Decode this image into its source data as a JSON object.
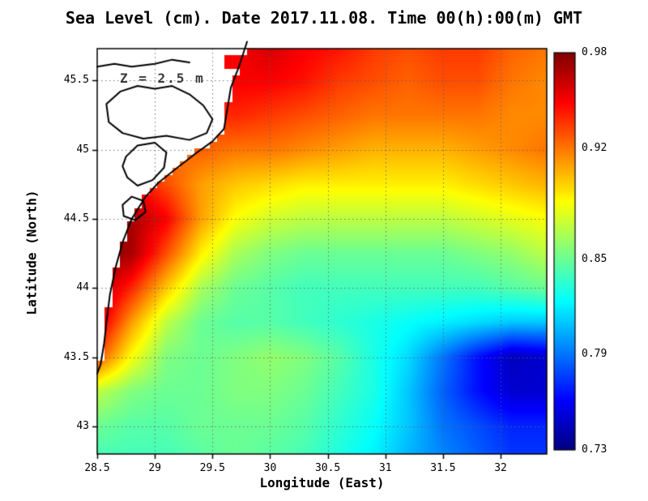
{
  "title": "Sea Level (cm). Date 2017.11.08. Time 00(h):00(m) GMT",
  "annotation": "Z = 2.5 m",
  "axes": {
    "xlabel": "Longitude (East)",
    "ylabel": "Latitude (North)",
    "x_range": [
      28.5,
      32.4
    ],
    "y_range": [
      42.8,
      45.73
    ],
    "x_ticks": [
      {
        "value": 28.5,
        "label": "28.5"
      },
      {
        "value": 29.0,
        "label": "29"
      },
      {
        "value": 29.5,
        "label": "29.5"
      },
      {
        "value": 30.0,
        "label": "30"
      },
      {
        "value": 30.5,
        "label": "30.5"
      },
      {
        "value": 31.0,
        "label": "31"
      },
      {
        "value": 31.5,
        "label": "31.5"
      },
      {
        "value": 32.0,
        "label": "32"
      }
    ],
    "y_ticks": [
      {
        "value": 43.0,
        "label": "43"
      },
      {
        "value": 43.5,
        "label": "43.5"
      },
      {
        "value": 44.0,
        "label": "44"
      },
      {
        "value": 44.5,
        "label": "44.5"
      },
      {
        "value": 45.0,
        "label": "45"
      },
      {
        "value": 45.5,
        "label": "45.5"
      }
    ],
    "grid": "dotted"
  },
  "colorbar": {
    "min": 0.73,
    "max": 0.98,
    "colormap": "jet",
    "ticks": [
      {
        "value": 0.98,
        "label": "0.98"
      },
      {
        "value": 0.92,
        "label": "0.92"
      },
      {
        "value": 0.85,
        "label": "0.85"
      },
      {
        "value": 0.79,
        "label": "0.79"
      },
      {
        "value": 0.73,
        "label": "0.73"
      }
    ]
  },
  "chart_data": {
    "type": "heatmap",
    "title": "Sea Level (cm). Date 2017.11.08. Time 00(h):00(m) GMT",
    "xlabel": "Longitude (East)",
    "ylabel": "Latitude (North)",
    "value_units": "m (sea level field shown 0.73-0.98)",
    "colormap": "jet",
    "value_range": [
      0.73,
      0.98
    ],
    "lon": [
      28.5,
      28.8,
      29.1,
      29.4,
      29.7,
      30.0,
      30.3,
      30.6,
      30.9,
      31.2,
      31.5,
      31.8,
      32.1,
      32.4
    ],
    "lat": [
      45.75,
      45.5,
      45.25,
      45.0,
      44.75,
      44.5,
      44.25,
      44.0,
      43.75,
      43.5,
      43.25,
      43.0,
      42.75
    ],
    "values": [
      [
        0.95,
        0.95,
        0.95,
        0.95,
        0.95,
        0.96,
        0.95,
        0.945,
        0.935,
        0.93,
        0.935,
        0.935,
        0.925,
        0.92
      ],
      [
        0.94,
        0.94,
        0.94,
        0.945,
        0.95,
        0.95,
        0.945,
        0.935,
        0.93,
        0.925,
        0.93,
        0.93,
        0.92,
        0.915
      ],
      [
        0.93,
        0.93,
        0.93,
        0.935,
        0.94,
        0.935,
        0.93,
        0.925,
        0.92,
        0.92,
        0.92,
        0.92,
        0.915,
        0.915
      ],
      [
        0.92,
        0.92,
        0.92,
        0.925,
        0.92,
        0.92,
        0.915,
        0.91,
        0.905,
        0.905,
        0.905,
        0.91,
        0.915,
        0.92
      ],
      [
        0.96,
        0.95,
        0.93,
        0.91,
        0.9,
        0.895,
        0.89,
        0.89,
        0.89,
        0.89,
        0.89,
        0.895,
        0.9,
        0.905
      ],
      [
        0.98,
        0.97,
        0.95,
        0.91,
        0.885,
        0.875,
        0.87,
        0.87,
        0.87,
        0.87,
        0.87,
        0.875,
        0.88,
        0.885
      ],
      [
        0.98,
        0.97,
        0.93,
        0.89,
        0.865,
        0.855,
        0.85,
        0.85,
        0.85,
        0.85,
        0.85,
        0.855,
        0.86,
        0.87
      ],
      [
        0.97,
        0.94,
        0.9,
        0.865,
        0.85,
        0.845,
        0.84,
        0.84,
        0.84,
        0.84,
        0.84,
        0.84,
        0.845,
        0.85
      ],
      [
        0.96,
        0.91,
        0.87,
        0.85,
        0.845,
        0.845,
        0.84,
        0.835,
        0.83,
        0.825,
        0.82,
        0.815,
        0.81,
        0.81
      ],
      [
        0.93,
        0.885,
        0.855,
        0.85,
        0.855,
        0.86,
        0.855,
        0.845,
        0.83,
        0.815,
        0.79,
        0.765,
        0.745,
        0.75
      ],
      [
        0.87,
        0.855,
        0.85,
        0.85,
        0.855,
        0.855,
        0.85,
        0.84,
        0.83,
        0.81,
        0.785,
        0.765,
        0.75,
        0.75
      ],
      [
        0.85,
        0.845,
        0.845,
        0.85,
        0.85,
        0.85,
        0.845,
        0.835,
        0.825,
        0.81,
        0.79,
        0.78,
        0.77,
        0.77
      ],
      [
        0.84,
        0.84,
        0.84,
        0.845,
        0.85,
        0.845,
        0.84,
        0.83,
        0.82,
        0.805,
        0.795,
        0.785,
        0.775,
        0.775
      ]
    ],
    "land_polygon": [
      [
        28.45,
        45.78
      ],
      [
        29.8,
        45.78
      ],
      [
        29.73,
        45.6
      ],
      [
        29.66,
        45.45
      ],
      [
        29.63,
        45.3
      ],
      [
        29.6,
        45.15
      ],
      [
        29.5,
        45.06
      ],
      [
        29.35,
        44.97
      ],
      [
        29.18,
        44.86
      ],
      [
        29.03,
        44.76
      ],
      [
        28.92,
        44.66
      ],
      [
        28.8,
        44.5
      ],
      [
        28.72,
        44.33
      ],
      [
        28.66,
        44.15
      ],
      [
        28.61,
        43.95
      ],
      [
        28.58,
        43.75
      ],
      [
        28.56,
        43.6
      ],
      [
        28.53,
        43.45
      ],
      [
        28.5,
        43.35
      ],
      [
        28.45,
        43.3
      ]
    ],
    "forced_sea_rects": [
      {
        "lon_min": 29.61,
        "lon_max": 29.73,
        "lat_min": 45.58,
        "lat_max": 45.69,
        "note": "red data cell at delta mouth"
      }
    ],
    "coastlines": [
      {
        "closed": false,
        "points": [
          [
            29.8,
            45.78
          ],
          [
            29.73,
            45.6
          ],
          [
            29.66,
            45.45
          ],
          [
            29.63,
            45.3
          ],
          [
            29.6,
            45.15
          ],
          [
            29.5,
            45.06
          ],
          [
            29.35,
            44.97
          ],
          [
            29.18,
            44.86
          ],
          [
            29.03,
            44.76
          ],
          [
            28.92,
            44.66
          ],
          [
            28.8,
            44.5
          ],
          [
            28.72,
            44.33
          ],
          [
            28.66,
            44.15
          ],
          [
            28.61,
            43.95
          ],
          [
            28.58,
            43.75
          ],
          [
            28.56,
            43.6
          ],
          [
            28.53,
            43.45
          ],
          [
            28.5,
            43.38
          ]
        ]
      },
      {
        "closed": true,
        "points": [
          [
            28.58,
            45.33
          ],
          [
            28.7,
            45.42
          ],
          [
            28.85,
            45.46
          ],
          [
            29.0,
            45.44
          ],
          [
            29.15,
            45.46
          ],
          [
            29.3,
            45.4
          ],
          [
            29.42,
            45.32
          ],
          [
            29.5,
            45.22
          ],
          [
            29.45,
            45.12
          ],
          [
            29.3,
            45.07
          ],
          [
            29.1,
            45.1
          ],
          [
            28.9,
            45.08
          ],
          [
            28.72,
            45.12
          ],
          [
            28.6,
            45.2
          ]
        ]
      },
      {
        "closed": false,
        "points": [
          [
            28.5,
            45.6
          ],
          [
            28.65,
            45.62
          ],
          [
            28.8,
            45.6
          ],
          [
            29.0,
            45.62
          ],
          [
            29.15,
            45.65
          ],
          [
            29.3,
            45.63
          ]
        ]
      },
      {
        "closed": true,
        "points": [
          [
            28.75,
            44.95
          ],
          [
            28.85,
            45.03
          ],
          [
            29.0,
            45.05
          ],
          [
            29.1,
            44.98
          ],
          [
            29.08,
            44.87
          ],
          [
            28.98,
            44.78
          ],
          [
            28.85,
            44.74
          ],
          [
            28.76,
            44.8
          ],
          [
            28.72,
            44.88
          ]
        ]
      },
      {
        "closed": true,
        "points": [
          [
            28.72,
            44.6
          ],
          [
            28.8,
            44.66
          ],
          [
            28.9,
            44.63
          ],
          [
            28.92,
            44.55
          ],
          [
            28.83,
            44.49
          ],
          [
            28.73,
            44.52
          ]
        ]
      }
    ],
    "grid_on": true,
    "legend_position": "right-colorbar"
  }
}
